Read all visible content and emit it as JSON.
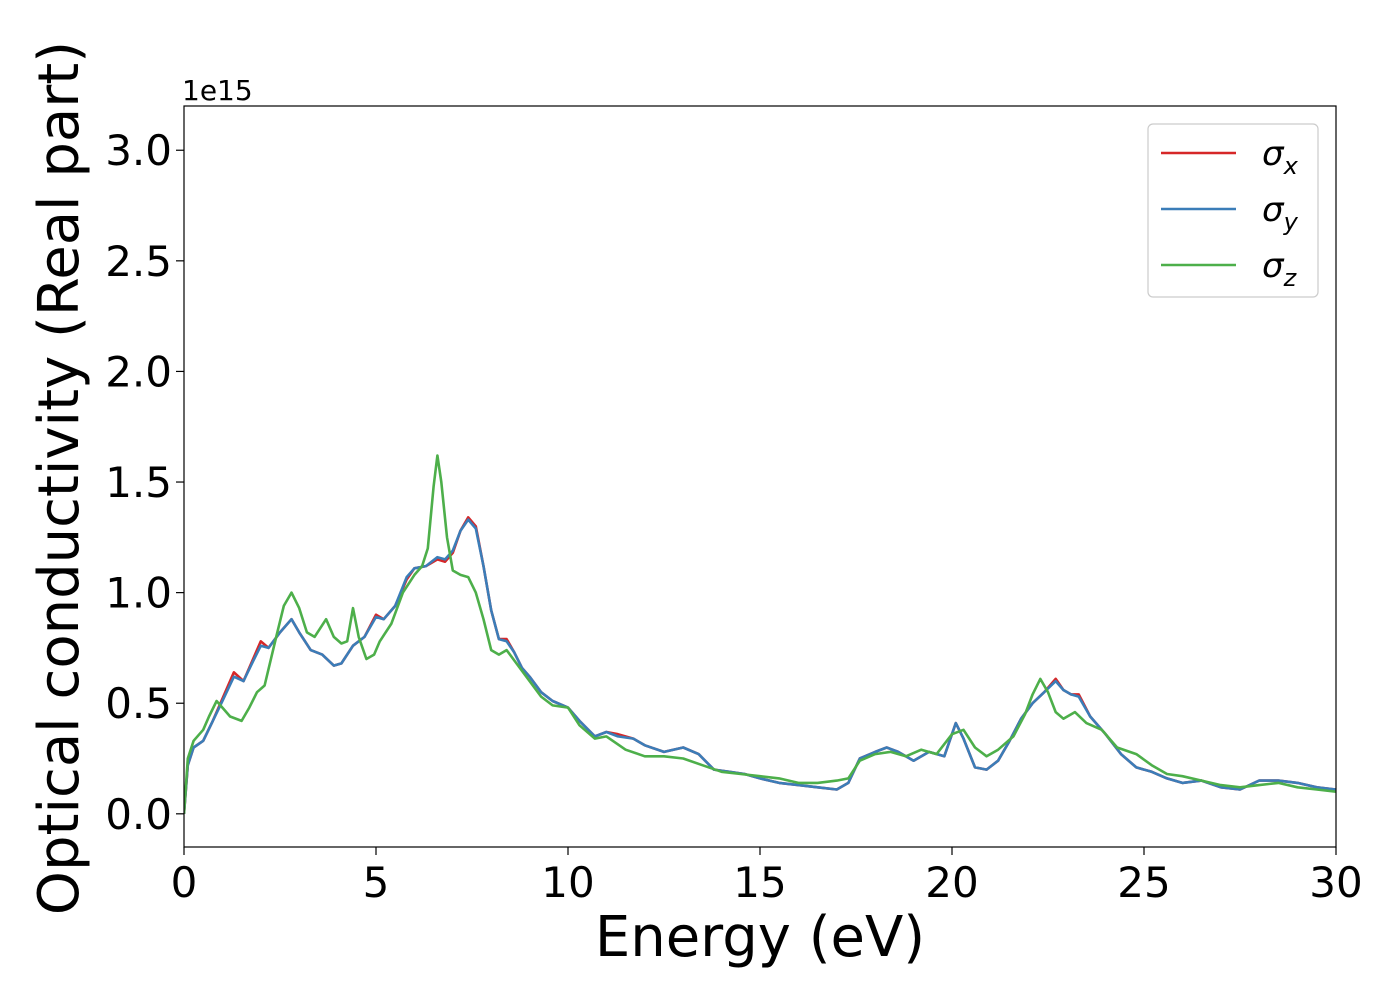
{
  "chart_data": {
    "type": "line",
    "title": "",
    "xlabel": "Energy (eV)",
    "ylabel": "Optical conductivity (Real part)",
    "y_offset_label": "1e15",
    "xlim": [
      0,
      30
    ],
    "ylim": [
      -0.15,
      3.2
    ],
    "xticks": [
      {
        "value": 0,
        "label": "0"
      },
      {
        "value": 5,
        "label": "5"
      },
      {
        "value": 10,
        "label": "10"
      },
      {
        "value": 15,
        "label": "15"
      },
      {
        "value": 20,
        "label": "20"
      },
      {
        "value": 25,
        "label": "25"
      },
      {
        "value": 30,
        "label": "30"
      }
    ],
    "yticks": [
      {
        "value": 0.0,
        "label": "0.0"
      },
      {
        "value": 0.5,
        "label": "0.5"
      },
      {
        "value": 1.0,
        "label": "1.0"
      },
      {
        "value": 1.5,
        "label": "1.5"
      },
      {
        "value": 2.0,
        "label": "2.0"
      },
      {
        "value": 2.5,
        "label": "2.5"
      },
      {
        "value": 3.0,
        "label": "3.0"
      }
    ],
    "grid": false,
    "legend_position": "top-right",
    "series": [
      {
        "name": "σx",
        "name_base": "σ",
        "name_sub": "x",
        "color": "#d62728",
        "x": [
          0,
          0.1,
          0.25,
          0.5,
          0.75,
          1.0,
          1.3,
          1.55,
          1.8,
          2.0,
          2.2,
          2.5,
          2.8,
          3.0,
          3.3,
          3.6,
          3.9,
          4.1,
          4.4,
          4.7,
          5.0,
          5.2,
          5.5,
          5.8,
          6.0,
          6.3,
          6.6,
          6.8,
          7.0,
          7.2,
          7.4,
          7.6,
          7.8,
          8.0,
          8.2,
          8.4,
          8.6,
          8.8,
          9.0,
          9.3,
          9.6,
          10.0,
          10.3,
          10.7,
          11.0,
          11.3,
          11.7,
          12.0,
          12.5,
          13.0,
          13.4,
          13.8,
          14.2,
          14.6,
          15.0,
          15.5,
          16.0,
          16.5,
          17.0,
          17.3,
          17.6,
          18.0,
          18.3,
          18.6,
          19.0,
          19.4,
          19.8,
          20.1,
          20.3,
          20.6,
          20.9,
          21.2,
          21.5,
          21.8,
          22.1,
          22.4,
          22.7,
          22.9,
          23.1,
          23.3,
          23.6,
          24.0,
          24.4,
          24.8,
          25.2,
          25.6,
          26.0,
          26.5,
          27.0,
          27.5,
          28.0,
          28.5,
          29.0,
          29.5,
          30.0
        ],
        "y": [
          0.0,
          0.22,
          0.3,
          0.33,
          0.42,
          0.52,
          0.64,
          0.6,
          0.7,
          0.78,
          0.75,
          0.82,
          0.88,
          0.82,
          0.74,
          0.72,
          0.67,
          0.68,
          0.76,
          0.8,
          0.9,
          0.88,
          0.94,
          1.06,
          1.11,
          1.12,
          1.15,
          1.14,
          1.18,
          1.28,
          1.34,
          1.3,
          1.12,
          0.92,
          0.79,
          0.79,
          0.73,
          0.66,
          0.62,
          0.55,
          0.51,
          0.48,
          0.42,
          0.35,
          0.37,
          0.36,
          0.34,
          0.31,
          0.28,
          0.3,
          0.27,
          0.2,
          0.19,
          0.18,
          0.16,
          0.14,
          0.13,
          0.12,
          0.11,
          0.14,
          0.25,
          0.28,
          0.3,
          0.28,
          0.24,
          0.28,
          0.26,
          0.41,
          0.34,
          0.21,
          0.2,
          0.24,
          0.33,
          0.43,
          0.5,
          0.55,
          0.61,
          0.56,
          0.54,
          0.54,
          0.44,
          0.36,
          0.27,
          0.21,
          0.19,
          0.16,
          0.14,
          0.15,
          0.12,
          0.11,
          0.15,
          0.15,
          0.14,
          0.12,
          0.11
        ]
      },
      {
        "name": "σy",
        "name_base": "σ",
        "name_sub": "y",
        "color": "#3b7db8",
        "x": [
          0,
          0.1,
          0.25,
          0.5,
          0.75,
          1.0,
          1.3,
          1.55,
          1.8,
          2.0,
          2.2,
          2.5,
          2.8,
          3.0,
          3.3,
          3.6,
          3.9,
          4.1,
          4.4,
          4.7,
          5.0,
          5.2,
          5.5,
          5.8,
          6.0,
          6.3,
          6.6,
          6.8,
          7.0,
          7.2,
          7.4,
          7.6,
          7.8,
          8.0,
          8.2,
          8.4,
          8.6,
          8.8,
          9.0,
          9.3,
          9.6,
          10.0,
          10.3,
          10.7,
          11.0,
          11.3,
          11.7,
          12.0,
          12.5,
          13.0,
          13.4,
          13.8,
          14.2,
          14.6,
          15.0,
          15.5,
          16.0,
          16.5,
          17.0,
          17.3,
          17.6,
          18.0,
          18.3,
          18.6,
          19.0,
          19.4,
          19.8,
          20.1,
          20.3,
          20.6,
          20.9,
          21.2,
          21.5,
          21.8,
          22.1,
          22.4,
          22.7,
          22.9,
          23.1,
          23.3,
          23.6,
          24.0,
          24.4,
          24.8,
          25.2,
          25.6,
          26.0,
          26.5,
          27.0,
          27.5,
          28.0,
          28.5,
          29.0,
          29.5,
          30.0
        ],
        "y": [
          0.0,
          0.22,
          0.3,
          0.33,
          0.42,
          0.51,
          0.62,
          0.6,
          0.69,
          0.76,
          0.75,
          0.82,
          0.88,
          0.82,
          0.74,
          0.72,
          0.67,
          0.68,
          0.76,
          0.8,
          0.89,
          0.88,
          0.94,
          1.07,
          1.11,
          1.12,
          1.16,
          1.15,
          1.19,
          1.28,
          1.33,
          1.29,
          1.12,
          0.92,
          0.79,
          0.78,
          0.73,
          0.66,
          0.62,
          0.55,
          0.51,
          0.48,
          0.42,
          0.35,
          0.37,
          0.35,
          0.34,
          0.31,
          0.28,
          0.3,
          0.27,
          0.2,
          0.19,
          0.18,
          0.16,
          0.14,
          0.13,
          0.12,
          0.11,
          0.14,
          0.25,
          0.28,
          0.3,
          0.28,
          0.24,
          0.28,
          0.26,
          0.41,
          0.34,
          0.21,
          0.2,
          0.24,
          0.33,
          0.43,
          0.5,
          0.55,
          0.6,
          0.56,
          0.54,
          0.53,
          0.44,
          0.36,
          0.27,
          0.21,
          0.19,
          0.16,
          0.14,
          0.15,
          0.12,
          0.11,
          0.15,
          0.15,
          0.14,
          0.12,
          0.11
        ]
      },
      {
        "name": "σz",
        "name_base": "σ",
        "name_sub": "z",
        "color": "#4daf4a",
        "x": [
          0,
          0.1,
          0.25,
          0.5,
          0.65,
          0.85,
          1.0,
          1.2,
          1.5,
          1.7,
          1.9,
          2.1,
          2.4,
          2.6,
          2.8,
          3.0,
          3.2,
          3.4,
          3.7,
          3.9,
          4.1,
          4.25,
          4.4,
          4.55,
          4.75,
          4.95,
          5.1,
          5.4,
          5.7,
          6.0,
          6.2,
          6.35,
          6.5,
          6.6,
          6.7,
          6.85,
          7.0,
          7.2,
          7.4,
          7.6,
          7.8,
          8.0,
          8.2,
          8.4,
          8.7,
          9.0,
          9.3,
          9.6,
          10.0,
          10.3,
          10.7,
          11.0,
          11.5,
          12.0,
          12.5,
          13.0,
          13.5,
          14.0,
          14.5,
          15.0,
          15.5,
          16.0,
          16.5,
          17.0,
          17.3,
          17.6,
          18.0,
          18.4,
          18.8,
          19.2,
          19.6,
          20.0,
          20.3,
          20.6,
          20.9,
          21.2,
          21.6,
          21.9,
          22.1,
          22.3,
          22.5,
          22.7,
          22.9,
          23.2,
          23.5,
          23.9,
          24.3,
          24.8,
          25.2,
          25.6,
          26.0,
          26.5,
          27.0,
          27.5,
          28.0,
          28.5,
          29.0,
          29.5,
          30.0
        ],
        "y": [
          0.0,
          0.25,
          0.33,
          0.38,
          0.44,
          0.51,
          0.48,
          0.44,
          0.42,
          0.48,
          0.55,
          0.58,
          0.8,
          0.94,
          1.0,
          0.93,
          0.82,
          0.8,
          0.88,
          0.8,
          0.77,
          0.78,
          0.93,
          0.8,
          0.7,
          0.72,
          0.78,
          0.86,
          1.0,
          1.08,
          1.12,
          1.2,
          1.48,
          1.62,
          1.5,
          1.25,
          1.1,
          1.08,
          1.07,
          1.0,
          0.88,
          0.74,
          0.72,
          0.74,
          0.67,
          0.6,
          0.53,
          0.49,
          0.48,
          0.4,
          0.34,
          0.35,
          0.29,
          0.26,
          0.26,
          0.25,
          0.22,
          0.19,
          0.18,
          0.17,
          0.16,
          0.14,
          0.14,
          0.15,
          0.16,
          0.24,
          0.27,
          0.28,
          0.26,
          0.29,
          0.27,
          0.36,
          0.38,
          0.3,
          0.26,
          0.29,
          0.35,
          0.45,
          0.54,
          0.61,
          0.55,
          0.46,
          0.43,
          0.46,
          0.41,
          0.38,
          0.3,
          0.27,
          0.22,
          0.18,
          0.17,
          0.15,
          0.13,
          0.12,
          0.13,
          0.14,
          0.12,
          0.11,
          0.1
        ]
      }
    ]
  }
}
